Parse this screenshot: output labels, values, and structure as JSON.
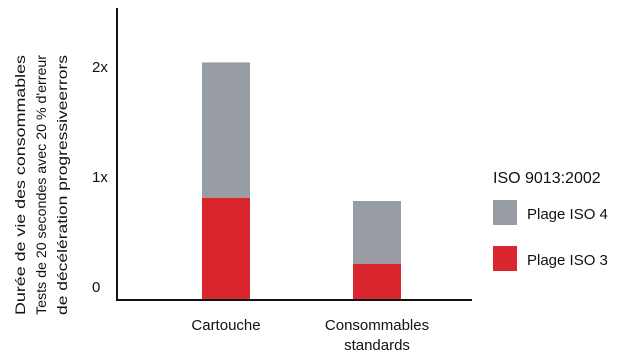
{
  "chart_data": {
    "type": "bar",
    "stacked": true,
    "categories": [
      "Cartouche",
      [
        "Consommables",
        "standards"
      ]
    ],
    "series": [
      {
        "name": "Plage ISO 3",
        "color": "#d9262e",
        "values": [
          0.93,
          0.33
        ]
      },
      {
        "name": "Plage ISO 4",
        "color": "#979da3",
        "values": [
          1.23,
          0.57
        ]
      }
    ],
    "ylabel": [
      "Durée de vie des consommables",
      "Tests de 20 secondes avec 20 % d'erreur",
      "de décélération progressiveerrors"
    ],
    "ylim": [
      0,
      3
    ],
    "yticks": [
      {
        "value": 0,
        "label": "0"
      },
      {
        "value": 1,
        "label": "1x"
      },
      {
        "value": 2,
        "label": "2x"
      }
    ],
    "legend_title": "ISO 9013:2002",
    "legend_position": "right",
    "grid": false
  }
}
